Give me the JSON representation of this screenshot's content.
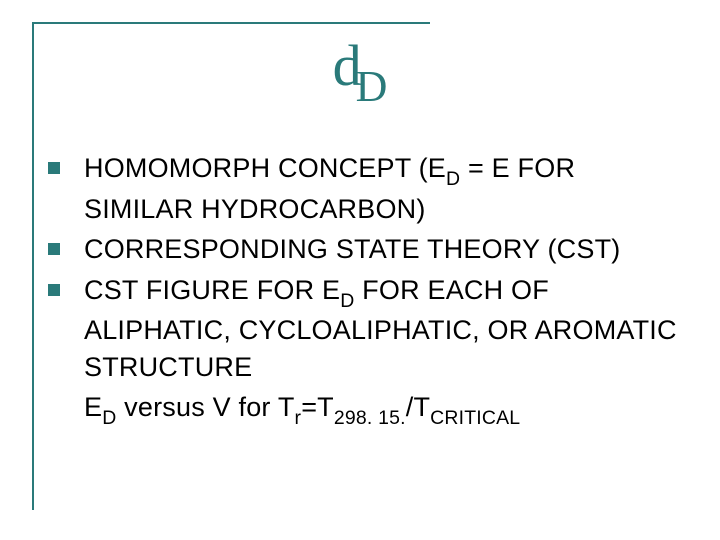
{
  "colors": {
    "accent": "#2a7a7a",
    "text": "#000000",
    "background": "#ffffff"
  },
  "title": {
    "delta": "d",
    "subscript": "D",
    "font_family": "Times New Roman",
    "font_size_main": 58,
    "font_size_sub": 44,
    "color": "#2a7a7a"
  },
  "bullets": {
    "marker_size": 12,
    "marker_color": "#2a7a7a",
    "text_color": "#000000",
    "font_size": 27,
    "items": [
      {
        "pre": "HOMOMORPH CONCEPT (E",
        "sub1": "D",
        "mid": " = E FOR SIMILAR HYDROCARBON)"
      },
      {
        "pre": "CORRESPONDING STATE THEORY (CST)"
      },
      {
        "pre": "CST FIGURE FOR E",
        "sub1": "D",
        "mid": " FOR EACH OF ALIPHATIC, CYCLOALIPHATIC, OR AROMATIC STRUCTURE"
      }
    ],
    "continuation": {
      "p1": "E",
      "s1": "D",
      "p2": " versus V for T",
      "s2": "r",
      "p3": "=T",
      "s3": "298. 15.",
      "p4": "/T",
      "s4": "CRITICAL"
    }
  },
  "frame": {
    "color": "#2a7a7a",
    "thickness": 2
  }
}
